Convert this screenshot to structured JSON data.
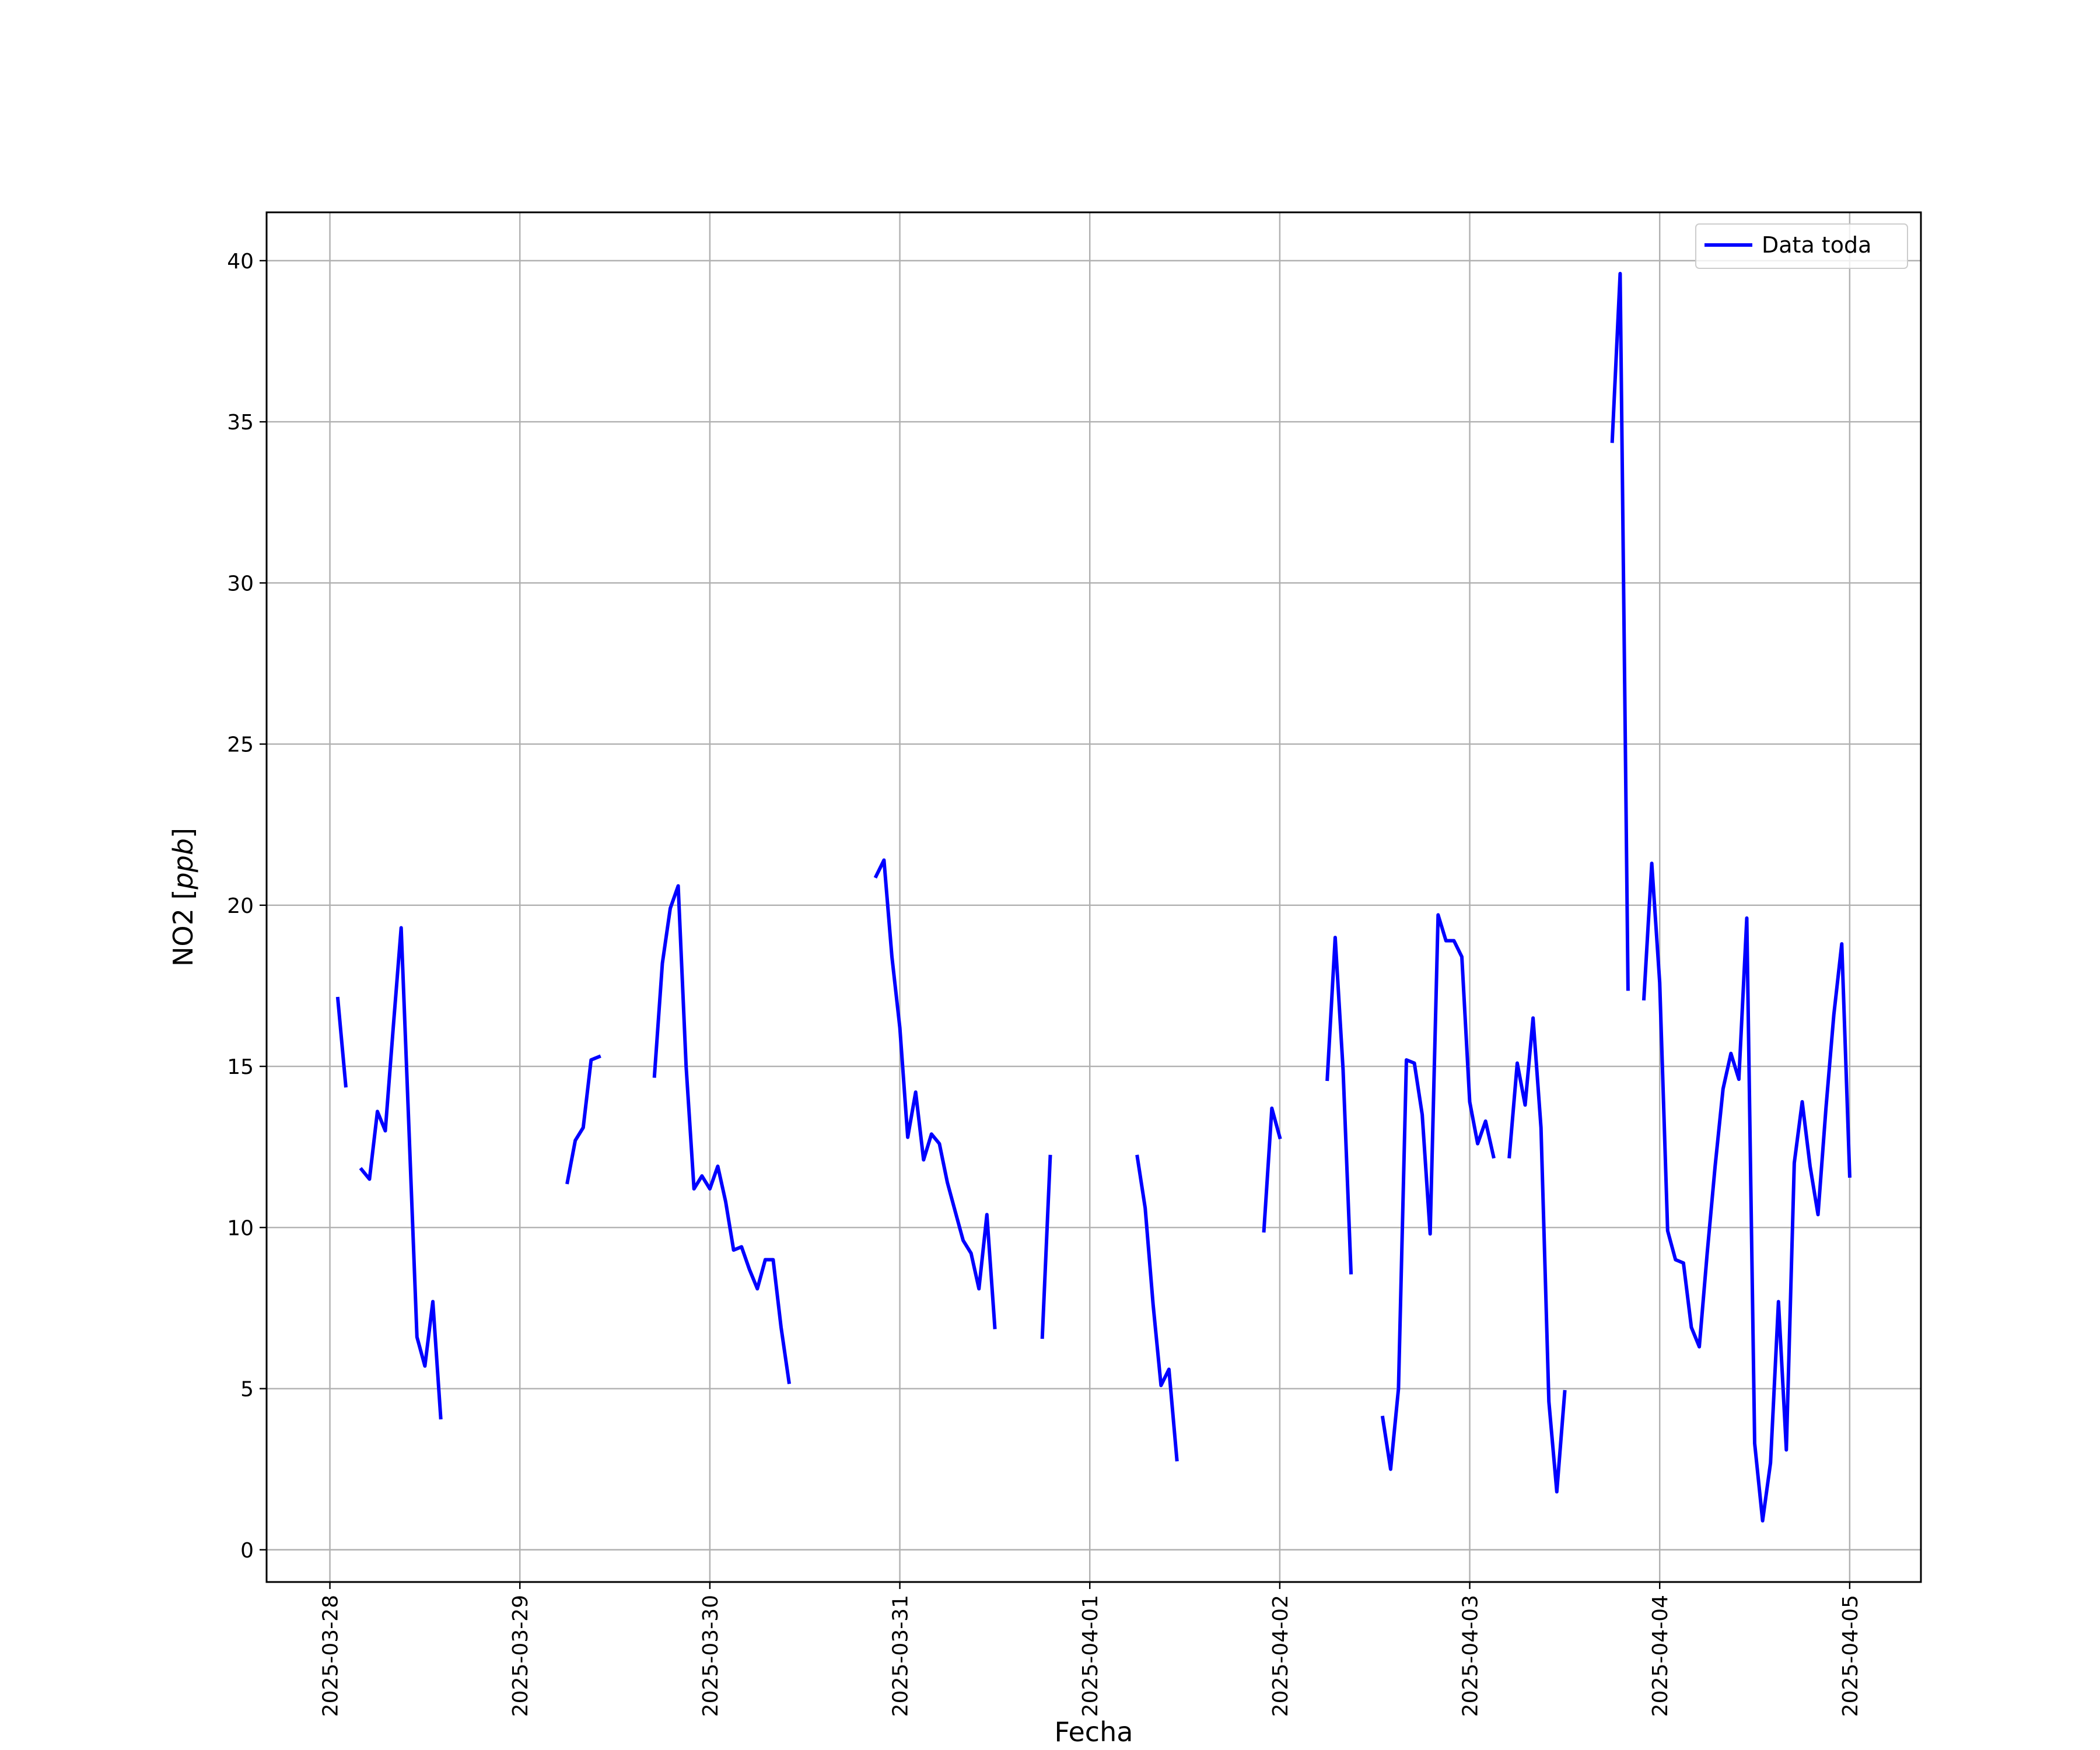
{
  "chart_data": {
    "type": "line",
    "title": "",
    "xlabel": "Fecha",
    "ylabel_prefix": "NO2 [",
    "ylabel_unit": "ppb",
    "ylabel_suffix": "]",
    "x_scale": "date",
    "xlim": [
      "2025-03-27T16:00",
      "2025-04-05T09:00"
    ],
    "ylim": [
      -1.0,
      41.5
    ],
    "x_ticks": [
      "2025-03-28",
      "2025-03-29",
      "2025-03-30",
      "2025-03-31",
      "2025-04-01",
      "2025-04-02",
      "2025-04-03",
      "2025-04-04",
      "2025-04-05"
    ],
    "y_ticks": [
      0,
      5,
      10,
      15,
      20,
      25,
      30,
      35,
      40
    ],
    "grid": true,
    "legend": {
      "position": "top-right",
      "entries": [
        "Data toda"
      ]
    },
    "series": [
      {
        "name": "Data toda",
        "color": "#0000ff",
        "segments": [
          [
            [
              "2025-03-28T01:00",
              17.1
            ],
            [
              "2025-03-28T02:00",
              14.4
            ]
          ],
          [
            [
              "2025-03-28T04:00",
              11.8
            ],
            [
              "2025-03-28T05:00",
              11.5
            ],
            [
              "2025-03-28T06:00",
              13.6
            ],
            [
              "2025-03-28T07:00",
              13.0
            ],
            [
              "2025-03-28T08:00",
              16.2
            ],
            [
              "2025-03-28T09:00",
              19.3
            ],
            [
              "2025-03-28T10:00",
              13.0
            ],
            [
              "2025-03-28T11:00",
              6.6
            ],
            [
              "2025-03-28T12:00",
              5.7
            ],
            [
              "2025-03-28T13:00",
              7.7
            ],
            [
              "2025-03-28T14:00",
              4.1
            ]
          ],
          [
            [
              "2025-03-29T06:00",
              11.4
            ],
            [
              "2025-03-29T07:00",
              12.7
            ],
            [
              "2025-03-29T08:00",
              13.1
            ],
            [
              "2025-03-29T09:00",
              15.2
            ],
            [
              "2025-03-29T10:00",
              15.3
            ]
          ],
          [
            [
              "2025-03-29T17:00",
              14.7
            ],
            [
              "2025-03-29T18:00",
              18.2
            ],
            [
              "2025-03-29T19:00",
              19.9
            ],
            [
              "2025-03-29T20:00",
              20.6
            ],
            [
              "2025-03-29T21:00",
              15.0
            ],
            [
              "2025-03-29T22:00",
              11.2
            ],
            [
              "2025-03-29T23:00",
              11.6
            ],
            [
              "2025-03-30T00:00",
              11.2
            ],
            [
              "2025-03-30T01:00",
              11.9
            ],
            [
              "2025-03-30T02:00",
              10.8
            ],
            [
              "2025-03-30T03:00",
              9.3
            ],
            [
              "2025-03-30T04:00",
              9.4
            ],
            [
              "2025-03-30T05:00",
              8.7
            ],
            [
              "2025-03-30T06:00",
              8.1
            ],
            [
              "2025-03-30T07:00",
              9.0
            ],
            [
              "2025-03-30T08:00",
              9.0
            ],
            [
              "2025-03-30T09:00",
              6.9
            ],
            [
              "2025-03-30T10:00",
              5.2
            ]
          ],
          [
            [
              "2025-03-30T21:00",
              20.9
            ],
            [
              "2025-03-30T22:00",
              21.4
            ],
            [
              "2025-03-30T23:00",
              18.4
            ],
            [
              "2025-03-31T00:00",
              16.2
            ],
            [
              "2025-03-31T01:00",
              12.8
            ],
            [
              "2025-03-31T02:00",
              14.2
            ],
            [
              "2025-03-31T03:00",
              12.1
            ],
            [
              "2025-03-31T04:00",
              12.9
            ],
            [
              "2025-03-31T05:00",
              12.6
            ],
            [
              "2025-03-31T06:00",
              11.4
            ],
            [
              "2025-03-31T07:00",
              10.5
            ],
            [
              "2025-03-31T08:00",
              9.6
            ],
            [
              "2025-03-31T09:00",
              9.2
            ],
            [
              "2025-03-31T10:00",
              8.1
            ],
            [
              "2025-03-31T11:00",
              10.4
            ],
            [
              "2025-03-31T12:00",
              6.9
            ]
          ],
          [
            [
              "2025-03-31T18:00",
              6.6
            ],
            [
              "2025-03-31T19:00",
              12.2
            ]
          ],
          [
            [
              "2025-04-01T06:00",
              12.2
            ],
            [
              "2025-04-01T07:00",
              10.6
            ],
            [
              "2025-04-01T08:00",
              7.6
            ],
            [
              "2025-04-01T09:00",
              5.1
            ],
            [
              "2025-04-01T10:00",
              5.6
            ],
            [
              "2025-04-01T11:00",
              2.8
            ]
          ],
          [
            [
              "2025-04-01T22:00",
              9.9
            ],
            [
              "2025-04-01T23:00",
              13.7
            ],
            [
              "2025-04-02T00:00",
              12.8
            ]
          ],
          [
            [
              "2025-04-02T06:00",
              14.6
            ],
            [
              "2025-04-02T07:00",
              19.0
            ],
            [
              "2025-04-02T08:00",
              14.9
            ],
            [
              "2025-04-02T09:00",
              8.6
            ]
          ],
          [
            [
              "2025-04-02T13:00",
              4.1
            ],
            [
              "2025-04-02T14:00",
              2.5
            ],
            [
              "2025-04-02T15:00",
              5.0
            ],
            [
              "2025-04-02T16:00",
              15.2
            ],
            [
              "2025-04-02T17:00",
              15.1
            ],
            [
              "2025-04-02T18:00",
              13.5
            ],
            [
              "2025-04-02T19:00",
              9.8
            ],
            [
              "2025-04-02T20:00",
              19.7
            ],
            [
              "2025-04-02T21:00",
              18.9
            ],
            [
              "2025-04-02T22:00",
              18.9
            ],
            [
              "2025-04-02T23:00",
              18.4
            ],
            [
              "2025-04-03T00:00",
              13.9
            ],
            [
              "2025-04-03T01:00",
              12.6
            ],
            [
              "2025-04-03T02:00",
              13.3
            ],
            [
              "2025-04-03T03:00",
              12.2
            ]
          ],
          [
            [
              "2025-04-03T05:00",
              12.2
            ],
            [
              "2025-04-03T06:00",
              15.1
            ],
            [
              "2025-04-03T07:00",
              13.8
            ],
            [
              "2025-04-03T08:00",
              16.5
            ],
            [
              "2025-04-03T09:00",
              13.1
            ],
            [
              "2025-04-03T10:00",
              4.6
            ],
            [
              "2025-04-03T11:00",
              1.8
            ],
            [
              "2025-04-03T12:00",
              4.9
            ]
          ],
          [
            [
              "2025-04-03T18:00",
              34.4
            ],
            [
              "2025-04-03T19:00",
              39.6
            ],
            [
              "2025-04-03T20:00",
              17.4
            ]
          ],
          [
            [
              "2025-04-03T22:00",
              17.1
            ],
            [
              "2025-04-03T23:00",
              21.3
            ],
            [
              "2025-04-04T00:00",
              17.6
            ],
            [
              "2025-04-04T01:00",
              9.9
            ],
            [
              "2025-04-04T02:00",
              9.0
            ],
            [
              "2025-04-04T03:00",
              8.9
            ],
            [
              "2025-04-04T04:00",
              6.9
            ],
            [
              "2025-04-04T05:00",
              6.3
            ],
            [
              "2025-04-04T06:00",
              9.2
            ],
            [
              "2025-04-04T07:00",
              11.9
            ],
            [
              "2025-04-04T08:00",
              14.3
            ],
            [
              "2025-04-04T09:00",
              15.4
            ],
            [
              "2025-04-04T10:00",
              14.6
            ],
            [
              "2025-04-04T11:00",
              19.6
            ],
            [
              "2025-04-04T12:00",
              3.3
            ],
            [
              "2025-04-04T13:00",
              0.9
            ],
            [
              "2025-04-04T14:00",
              2.7
            ],
            [
              "2025-04-04T15:00",
              7.7
            ],
            [
              "2025-04-04T16:00",
              3.1
            ],
            [
              "2025-04-04T17:00",
              12.0
            ],
            [
              "2025-04-04T18:00",
              13.9
            ],
            [
              "2025-04-04T19:00",
              11.9
            ],
            [
              "2025-04-04T20:00",
              10.4
            ],
            [
              "2025-04-04T21:00",
              13.7
            ],
            [
              "2025-04-04T22:00",
              16.6
            ],
            [
              "2025-04-04T23:00",
              18.8
            ],
            [
              "2025-04-05T00:00",
              11.6
            ]
          ]
        ]
      }
    ]
  }
}
